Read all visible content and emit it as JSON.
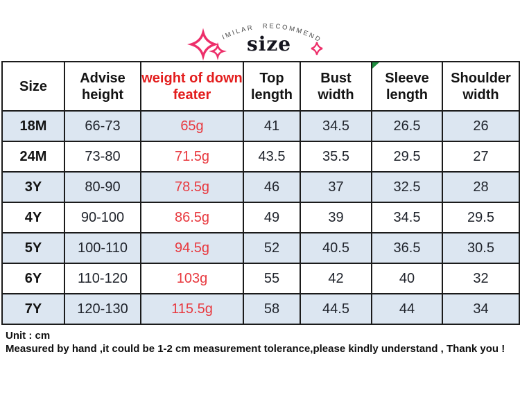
{
  "header": {
    "arc_label": "SIMILAR  RECOMMEND",
    "title": "size",
    "accent_pink": "#ed2f6a"
  },
  "table": {
    "column_keys": [
      "size",
      "height",
      "weight",
      "top",
      "bust",
      "sleeve",
      "shoulder"
    ],
    "columns": [
      "Size",
      "Advise height",
      "weight of down feater",
      "Top length",
      "Bust width",
      "Sleeve length",
      "Shoulder width"
    ],
    "header_red_color": "#e31d1d",
    "value_red_color": "#e8393f",
    "stripe_color": "#dce6f1",
    "flag_color": "#1e8e3e",
    "rows": [
      {
        "size": "18M",
        "height": "66-73",
        "weight": "65g",
        "top": "41",
        "bust": "34.5",
        "sleeve": "26.5",
        "shoulder": "26"
      },
      {
        "size": "24M",
        "height": "73-80",
        "weight": "71.5g",
        "top": "43.5",
        "bust": "35.5",
        "sleeve": "29.5",
        "shoulder": "27"
      },
      {
        "size": "3Y",
        "height": "80-90",
        "weight": "78.5g",
        "top": "46",
        "bust": "37",
        "sleeve": "32.5",
        "shoulder": "28"
      },
      {
        "size": "4Y",
        "height": "90-100",
        "weight": "86.5g",
        "top": "49",
        "bust": "39",
        "sleeve": "34.5",
        "shoulder": "29.5"
      },
      {
        "size": "5Y",
        "height": "100-110",
        "weight": "94.5g",
        "top": "52",
        "bust": "40.5",
        "sleeve": "36.5",
        "shoulder": "30.5"
      },
      {
        "size": "6Y",
        "height": "110-120",
        "weight": "103g",
        "top": "55",
        "bust": "42",
        "sleeve": "40",
        "shoulder": "32"
      },
      {
        "size": "7Y",
        "height": "120-130",
        "weight": "115.5g",
        "top": "58",
        "bust": "44.5",
        "sleeve": "44",
        "shoulder": "34"
      }
    ]
  },
  "footer": {
    "unit": "Unit : cm",
    "note": "Measured by hand ,it could be 1-2 cm measurement tolerance,please kindly understand , Thank you !"
  }
}
